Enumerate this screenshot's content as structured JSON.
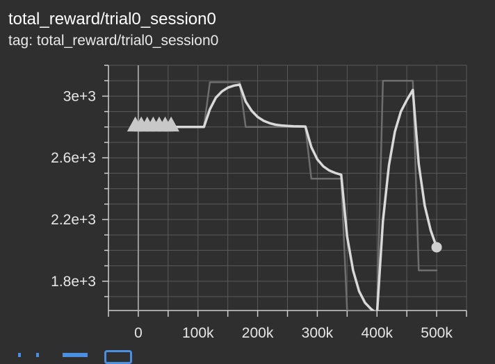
{
  "card": {
    "title": "total_reward/trial0_session0",
    "tag": "tag: total_reward/trial0_session0"
  },
  "colors": {
    "background": "#2f2f2f",
    "grid": "#5a5a5a",
    "smoothed": "#d9d9d9",
    "raw": "#6e6e6e",
    "icon_accent": "#4a8fe0"
  },
  "bottom_icons": [
    "expand-icon",
    "data-download-icon",
    "fit-domain-icon"
  ],
  "chart_data": {
    "type": "line",
    "title": "total_reward/trial0_session0",
    "xlabel": "",
    "ylabel": "",
    "xlim": [
      -50000,
      550000
    ],
    "ylim": [
      1610,
      3200
    ],
    "x_ticks": [
      0,
      100000,
      200000,
      300000,
      400000,
      500000
    ],
    "x_tick_labels": [
      "0",
      "100k",
      "200k",
      "300k",
      "400k",
      "500k"
    ],
    "y_ticks": [
      1800,
      2200,
      2600,
      3000
    ],
    "y_tick_labels": [
      "1.8e+3",
      "2.2e+3",
      "2.6e+3",
      "3e+3"
    ],
    "grid": true,
    "series": [
      {
        "role": "raw",
        "x": [
          -10000,
          110000,
          120000,
          170000,
          180000,
          280000,
          290000,
          340000,
          350000,
          400000,
          410000,
          460000,
          470000,
          500000
        ],
        "y": [
          2800,
          2800,
          3090,
          3090,
          2800,
          2800,
          2465,
          2465,
          1610,
          1610,
          3100,
          3100,
          1870,
          1870
        ]
      },
      {
        "role": "smoothed",
        "x": [
          -10000,
          110000,
          120000,
          130000,
          140000,
          150000,
          160000,
          170000,
          180000,
          190000,
          200000,
          210000,
          220000,
          230000,
          240000,
          250000,
          260000,
          280000,
          290000,
          300000,
          310000,
          320000,
          330000,
          340000,
          350000,
          360000,
          370000,
          380000,
          390000,
          400000,
          410000,
          420000,
          430000,
          440000,
          450000,
          460000,
          470000,
          480000,
          490000,
          500000
        ],
        "y": [
          2800,
          2800,
          2915,
          2990,
          3030,
          3055,
          3068,
          3075,
          2965,
          2905,
          2865,
          2840,
          2825,
          2815,
          2810,
          2807,
          2805,
          2803,
          2670,
          2590,
          2545,
          2518,
          2502,
          2490,
          2090,
          1870,
          1735,
          1660,
          1620,
          1590,
          2190,
          2550,
          2770,
          2900,
          2975,
          3040,
          2560,
          2290,
          2130,
          2020
        ]
      }
    ],
    "markers": {
      "triangles_x": [
        -5000,
        5000,
        15000,
        25000,
        35000,
        45000,
        55000
      ],
      "triangles_y": 2800,
      "end_point": [
        500000,
        2020
      ]
    }
  }
}
